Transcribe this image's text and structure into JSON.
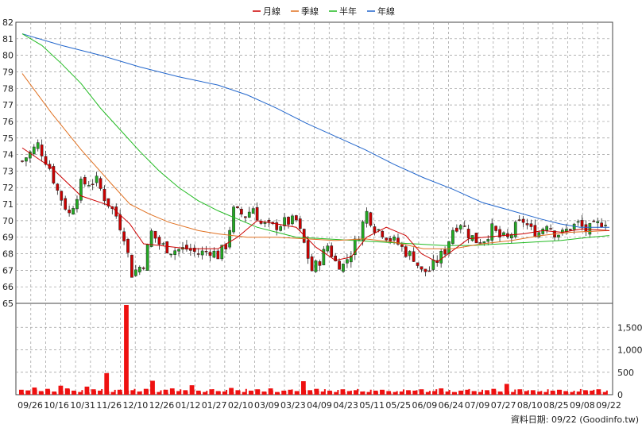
{
  "chart_data": [
    {
      "type": "candlestick",
      "legend": [
        {
          "name": "月線",
          "color": "#cc0000"
        },
        {
          "name": "季線",
          "color": "#e07020"
        },
        {
          "name": "半年",
          "color": "#22bb22"
        },
        {
          "name": "年線",
          "color": "#2266cc"
        }
      ],
      "legend_position": "top-center",
      "ylim": [
        65,
        82
      ],
      "yticks": [
        65,
        66,
        67,
        68,
        69,
        70,
        71,
        72,
        73,
        74,
        75,
        76,
        77,
        78,
        79,
        80,
        81,
        82
      ],
      "grid": true,
      "up_color": "#22aa22",
      "down_color": "#cc0000",
      "price_path": [
        [
          0,
          73.6
        ],
        [
          8,
          74.6
        ],
        [
          14,
          73.2
        ],
        [
          18,
          71.8
        ],
        [
          24,
          70.4
        ],
        [
          30,
          72.2
        ],
        [
          38,
          72.4
        ],
        [
          42,
          71.4
        ],
        [
          48,
          70.3
        ],
        [
          52,
          69.1
        ],
        [
          56,
          66.8
        ],
        [
          62,
          67.4
        ],
        [
          66,
          69.3
        ],
        [
          70,
          68.6
        ],
        [
          76,
          68.2
        ],
        [
          84,
          68.3
        ],
        [
          90,
          68.0
        ],
        [
          96,
          68.2
        ],
        [
          100,
          67.9
        ],
        [
          104,
          68.5
        ],
        [
          108,
          70.6
        ],
        [
          114,
          70.3
        ],
        [
          118,
          70.8
        ],
        [
          122,
          69.8
        ],
        [
          128,
          69.6
        ],
        [
          134,
          69.9
        ],
        [
          140,
          70.0
        ],
        [
          144,
          68.6
        ],
        [
          148,
          67.0
        ],
        [
          152,
          67.6
        ],
        [
          156,
          68.5
        ],
        [
          160,
          67.5
        ],
        [
          164,
          67.3
        ],
        [
          168,
          68.1
        ],
        [
          172,
          69.2
        ],
        [
          176,
          70.5
        ],
        [
          180,
          69.6
        ],
        [
          184,
          69.3
        ],
        [
          188,
          68.9
        ],
        [
          192,
          68.6
        ],
        [
          196,
          68.1
        ],
        [
          200,
          67.8
        ],
        [
          204,
          66.9
        ],
        [
          208,
          67.0
        ],
        [
          212,
          67.6
        ],
        [
          216,
          68.2
        ],
        [
          220,
          69.5
        ],
        [
          224,
          69.9
        ],
        [
          228,
          69.2
        ],
        [
          232,
          68.8
        ],
        [
          236,
          68.9
        ],
        [
          240,
          69.5
        ],
        [
          244,
          69.0
        ],
        [
          248,
          68.9
        ],
        [
          252,
          69.6
        ],
        [
          256,
          70.0
        ],
        [
          260,
          69.4
        ],
        [
          264,
          69.3
        ],
        [
          268,
          69.9
        ],
        [
          272,
          69.3
        ],
        [
          276,
          69.2
        ],
        [
          280,
          69.6
        ],
        [
          284,
          69.8
        ],
        [
          288,
          69.4
        ],
        [
          292,
          69.6
        ],
        [
          296,
          69.9
        ],
        [
          300,
          70.1
        ]
      ],
      "ma_month": [
        [
          0,
          74.4
        ],
        [
          15,
          73.2
        ],
        [
          30,
          71.5
        ],
        [
          45,
          70.9
        ],
        [
          55,
          69.8
        ],
        [
          62,
          68.6
        ],
        [
          70,
          68.5
        ],
        [
          85,
          68.3
        ],
        [
          100,
          68.3
        ],
        [
          110,
          69.0
        ],
        [
          120,
          70.0
        ],
        [
          130,
          69.8
        ],
        [
          140,
          69.6
        ],
        [
          150,
          68.4
        ],
        [
          160,
          67.6
        ],
        [
          168,
          67.8
        ],
        [
          176,
          69.0
        ],
        [
          186,
          69.6
        ],
        [
          196,
          69.1
        ],
        [
          204,
          68.0
        ],
        [
          212,
          67.5
        ],
        [
          220,
          68.2
        ],
        [
          228,
          68.9
        ],
        [
          236,
          69.0
        ],
        [
          246,
          69.1
        ],
        [
          256,
          69.2
        ],
        [
          266,
          69.4
        ],
        [
          276,
          69.3
        ],
        [
          286,
          69.5
        ],
        [
          300,
          69.4
        ]
      ],
      "ma_season": [
        [
          0,
          78.9
        ],
        [
          15,
          76.5
        ],
        [
          30,
          74.3
        ],
        [
          45,
          72.3
        ],
        [
          55,
          71.0
        ],
        [
          65,
          70.4
        ],
        [
          75,
          69.9
        ],
        [
          90,
          69.4
        ],
        [
          100,
          69.2
        ],
        [
          115,
          69.0
        ],
        [
          130,
          69.0
        ],
        [
          145,
          68.9
        ],
        [
          160,
          68.8
        ],
        [
          175,
          68.9
        ],
        [
          190,
          68.7
        ],
        [
          205,
          68.3
        ],
        [
          220,
          68.3
        ],
        [
          235,
          68.6
        ],
        [
          250,
          68.8
        ],
        [
          265,
          69.1
        ],
        [
          280,
          69.3
        ],
        [
          300,
          69.4
        ]
      ],
      "ma_half": [
        [
          0,
          81.3
        ],
        [
          10,
          80.6
        ],
        [
          20,
          79.5
        ],
        [
          30,
          78.3
        ],
        [
          40,
          76.8
        ],
        [
          50,
          75.5
        ],
        [
          60,
          74.2
        ],
        [
          70,
          73.0
        ],
        [
          80,
          72.0
        ],
        [
          90,
          71.2
        ],
        [
          100,
          70.6
        ],
        [
          110,
          70.1
        ],
        [
          120,
          69.6
        ],
        [
          130,
          69.3
        ],
        [
          140,
          69.0
        ],
        [
          155,
          68.9
        ],
        [
          170,
          68.8
        ],
        [
          185,
          68.7
        ],
        [
          200,
          68.6
        ],
        [
          215,
          68.5
        ],
        [
          230,
          68.5
        ],
        [
          245,
          68.6
        ],
        [
          260,
          68.7
        ],
        [
          275,
          68.8
        ],
        [
          290,
          69.0
        ],
        [
          300,
          69.1
        ]
      ],
      "ma_year": [
        [
          0,
          81.3
        ],
        [
          20,
          80.6
        ],
        [
          40,
          80.0
        ],
        [
          60,
          79.3
        ],
        [
          80,
          78.7
        ],
        [
          100,
          78.2
        ],
        [
          115,
          77.6
        ],
        [
          130,
          76.8
        ],
        [
          145,
          75.9
        ],
        [
          160,
          75.1
        ],
        [
          175,
          74.3
        ],
        [
          190,
          73.4
        ],
        [
          205,
          72.6
        ],
        [
          220,
          71.9
        ],
        [
          235,
          71.1
        ],
        [
          250,
          70.6
        ],
        [
          265,
          70.1
        ],
        [
          275,
          69.8
        ],
        [
          285,
          69.6
        ],
        [
          300,
          69.6
        ]
      ]
    },
    {
      "type": "bar",
      "series": [
        {
          "name": "volume",
          "color": "#ee1111"
        }
      ],
      "ylim": [
        0,
        2000
      ],
      "yticks": [
        0,
        500,
        1000,
        1500
      ],
      "ytick_labels": [
        "0",
        "500",
        "1,000",
        "1,500"
      ],
      "grid": true,
      "base_volume": [
        110,
        95,
        160,
        80,
        130,
        70,
        200,
        140,
        90,
        60,
        180,
        120,
        90,
        150,
        60,
        110,
        250,
        100,
        70,
        130,
        90,
        60,
        110,
        140,
        80,
        100,
        210,
        90,
        60,
        120,
        80,
        70,
        150,
        100,
        60,
        90,
        120,
        70,
        140,
        60,
        90,
        110,
        80,
        60,
        100,
        130,
        70,
        90,
        60,
        120,
        80,
        100,
        70,
        60,
        90,
        110,
        80,
        60,
        70,
        100,
        90,
        120,
        60,
        80,
        140,
        70,
        60,
        90,
        110,
        80,
        60,
        100,
        130,
        70,
        90,
        60,
        120,
        80,
        100,
        70,
        60,
        90,
        110,
        80,
        60,
        70,
        100,
        90,
        120,
        60
      ],
      "volume_spikes": [
        [
          16,
          2000
        ],
        [
          13,
          480
        ],
        [
          20,
          310
        ],
        [
          43,
          300
        ],
        [
          74,
          240
        ]
      ],
      "x_categories": [
        "09/26",
        "10/16",
        "10/31",
        "11/26",
        "12/10",
        "12/26",
        "01/12",
        "01/27",
        "02/10",
        "03/09",
        "03/23",
        "04/09",
        "04/23",
        "05/11",
        "05/25",
        "06/09",
        "06/24",
        "07/09",
        "07/27",
        "08/10",
        "08/25",
        "09/08",
        "09/22"
      ]
    }
  ],
  "footer": {
    "credit": "資料日期: 09/22 (Goodinfo.tw)"
  }
}
